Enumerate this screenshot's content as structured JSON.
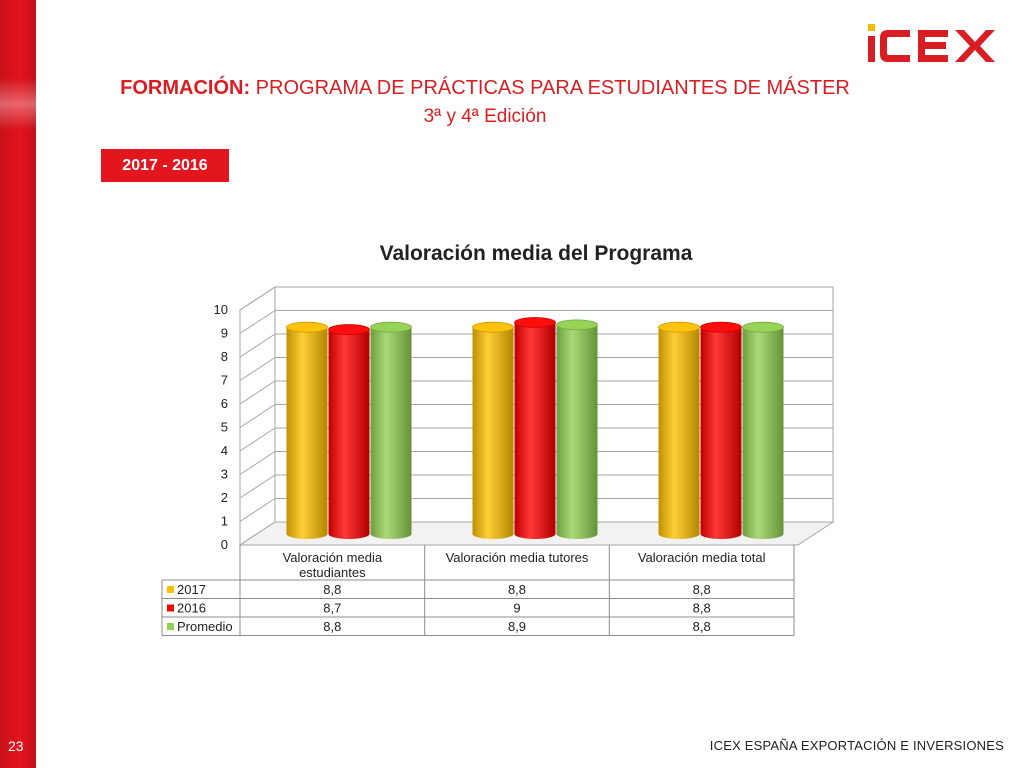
{
  "slide": {
    "page_number": "23",
    "title_bold": "FORMACIÓN:",
    "title_rest": "PROGRAMA DE PRÁCTICAS PARA ESTUDIANTES DE MÁSTER",
    "subtitle": "3ª y 4ª Edición",
    "badge": "2017 - 2016",
    "footer": "ICEX ESPAÑA EXPORTACIÓN E INVERSIONES",
    "logo_text": "ICEX"
  },
  "colors": {
    "brand_red": "#e3161e",
    "series_2017": "#ffc000",
    "series_2016": "#ff0000",
    "series_promedio": "#92d050"
  },
  "chart_data": {
    "type": "bar",
    "title": "Valoración media del Programa",
    "categories": [
      "Valoración media estudiantes",
      "Valoración media tutores",
      "Valoración media total"
    ],
    "category_lines": [
      [
        "Valoración media",
        "estudiantes"
      ],
      [
        "Valoración media tutores"
      ],
      [
        "Valoración media total"
      ]
    ],
    "series": [
      {
        "name": "2017",
        "values": [
          8.8,
          8.8,
          8.8
        ],
        "labels": [
          "8,8",
          "8,8",
          "8,8"
        ],
        "color": "#ffc000"
      },
      {
        "name": "2016",
        "values": [
          8.7,
          9,
          8.8
        ],
        "labels": [
          "8,7",
          "9",
          "8,8"
        ],
        "color": "#ff0000"
      },
      {
        "name": "Promedio",
        "values": [
          8.8,
          8.9,
          8.8
        ],
        "labels": [
          "8,8",
          "8,9",
          "8,8"
        ],
        "color": "#92d050"
      }
    ],
    "yticks": [
      "0",
      "1",
      "2",
      "3",
      "4",
      "5",
      "6",
      "7",
      "8",
      "9",
      "10"
    ],
    "ylim": [
      0,
      10
    ],
    "grid": true,
    "legend": "data-table"
  }
}
